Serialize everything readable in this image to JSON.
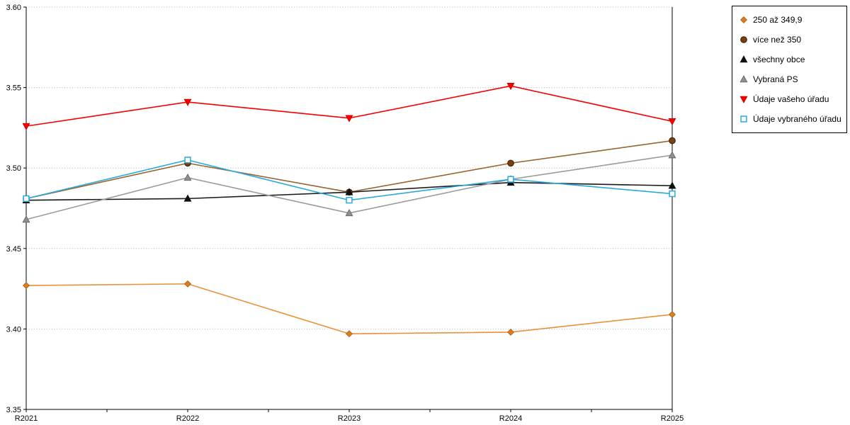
{
  "chart_data": {
    "type": "line",
    "title": "",
    "xlabel": "",
    "ylabel": "",
    "x_categories": [
      "R2021",
      "R2022",
      "R2023",
      "R2024",
      "R2025"
    ],
    "ylim": [
      3.35,
      3.6
    ],
    "ytick_step": 0.05,
    "ytick_labels": [
      "3.35",
      "3.40",
      "3.45",
      "3.50",
      "3.55",
      "3.60"
    ],
    "grid": "horizontal-dotted",
    "legend_position": "outside-top-right",
    "series": [
      {
        "name": "250 až 349,9",
        "marker": "diamond",
        "line_color": "#E8923A",
        "marker_fill": "#DD7E1E",
        "marker_stroke": "#A85A10",
        "values": [
          3.427,
          3.428,
          3.397,
          3.398,
          3.409
        ]
      },
      {
        "name": "více než 350",
        "marker": "circle",
        "line_color": "#9A6430",
        "marker_fill": "#7C3F11",
        "marker_stroke": "#2E1A05",
        "values": [
          3.481,
          3.503,
          3.485,
          3.503,
          3.517
        ]
      },
      {
        "name": "všechny obce",
        "marker": "triangle-up",
        "line_color": "#1A1A1A",
        "marker_fill": "#0F0F0F",
        "marker_stroke": "#0F0F0F",
        "values": [
          3.48,
          3.481,
          3.485,
          3.491,
          3.489
        ]
      },
      {
        "name": "Vybraná PS",
        "marker": "triangle-up",
        "line_color": "#9B9B9B",
        "marker_fill": "#8F8F8F",
        "marker_stroke": "#5F5F5F",
        "values": [
          3.468,
          3.494,
          3.472,
          3.493,
          3.508
        ]
      },
      {
        "name": "Údaje vašeho úřadu",
        "marker": "triangle-down",
        "line_color": "#F80000",
        "marker_fill": "#F80000",
        "marker_stroke": "#C40000",
        "values": [
          3.526,
          3.541,
          3.531,
          3.551,
          3.529
        ]
      },
      {
        "name": "Údaje vybraného úřadu",
        "marker": "square-open",
        "line_color": "#2BA9DD",
        "marker_fill": "#FFFFFF",
        "marker_stroke": "#2BA9DD",
        "values": [
          3.481,
          3.505,
          3.48,
          3.493,
          3.484
        ]
      }
    ]
  }
}
